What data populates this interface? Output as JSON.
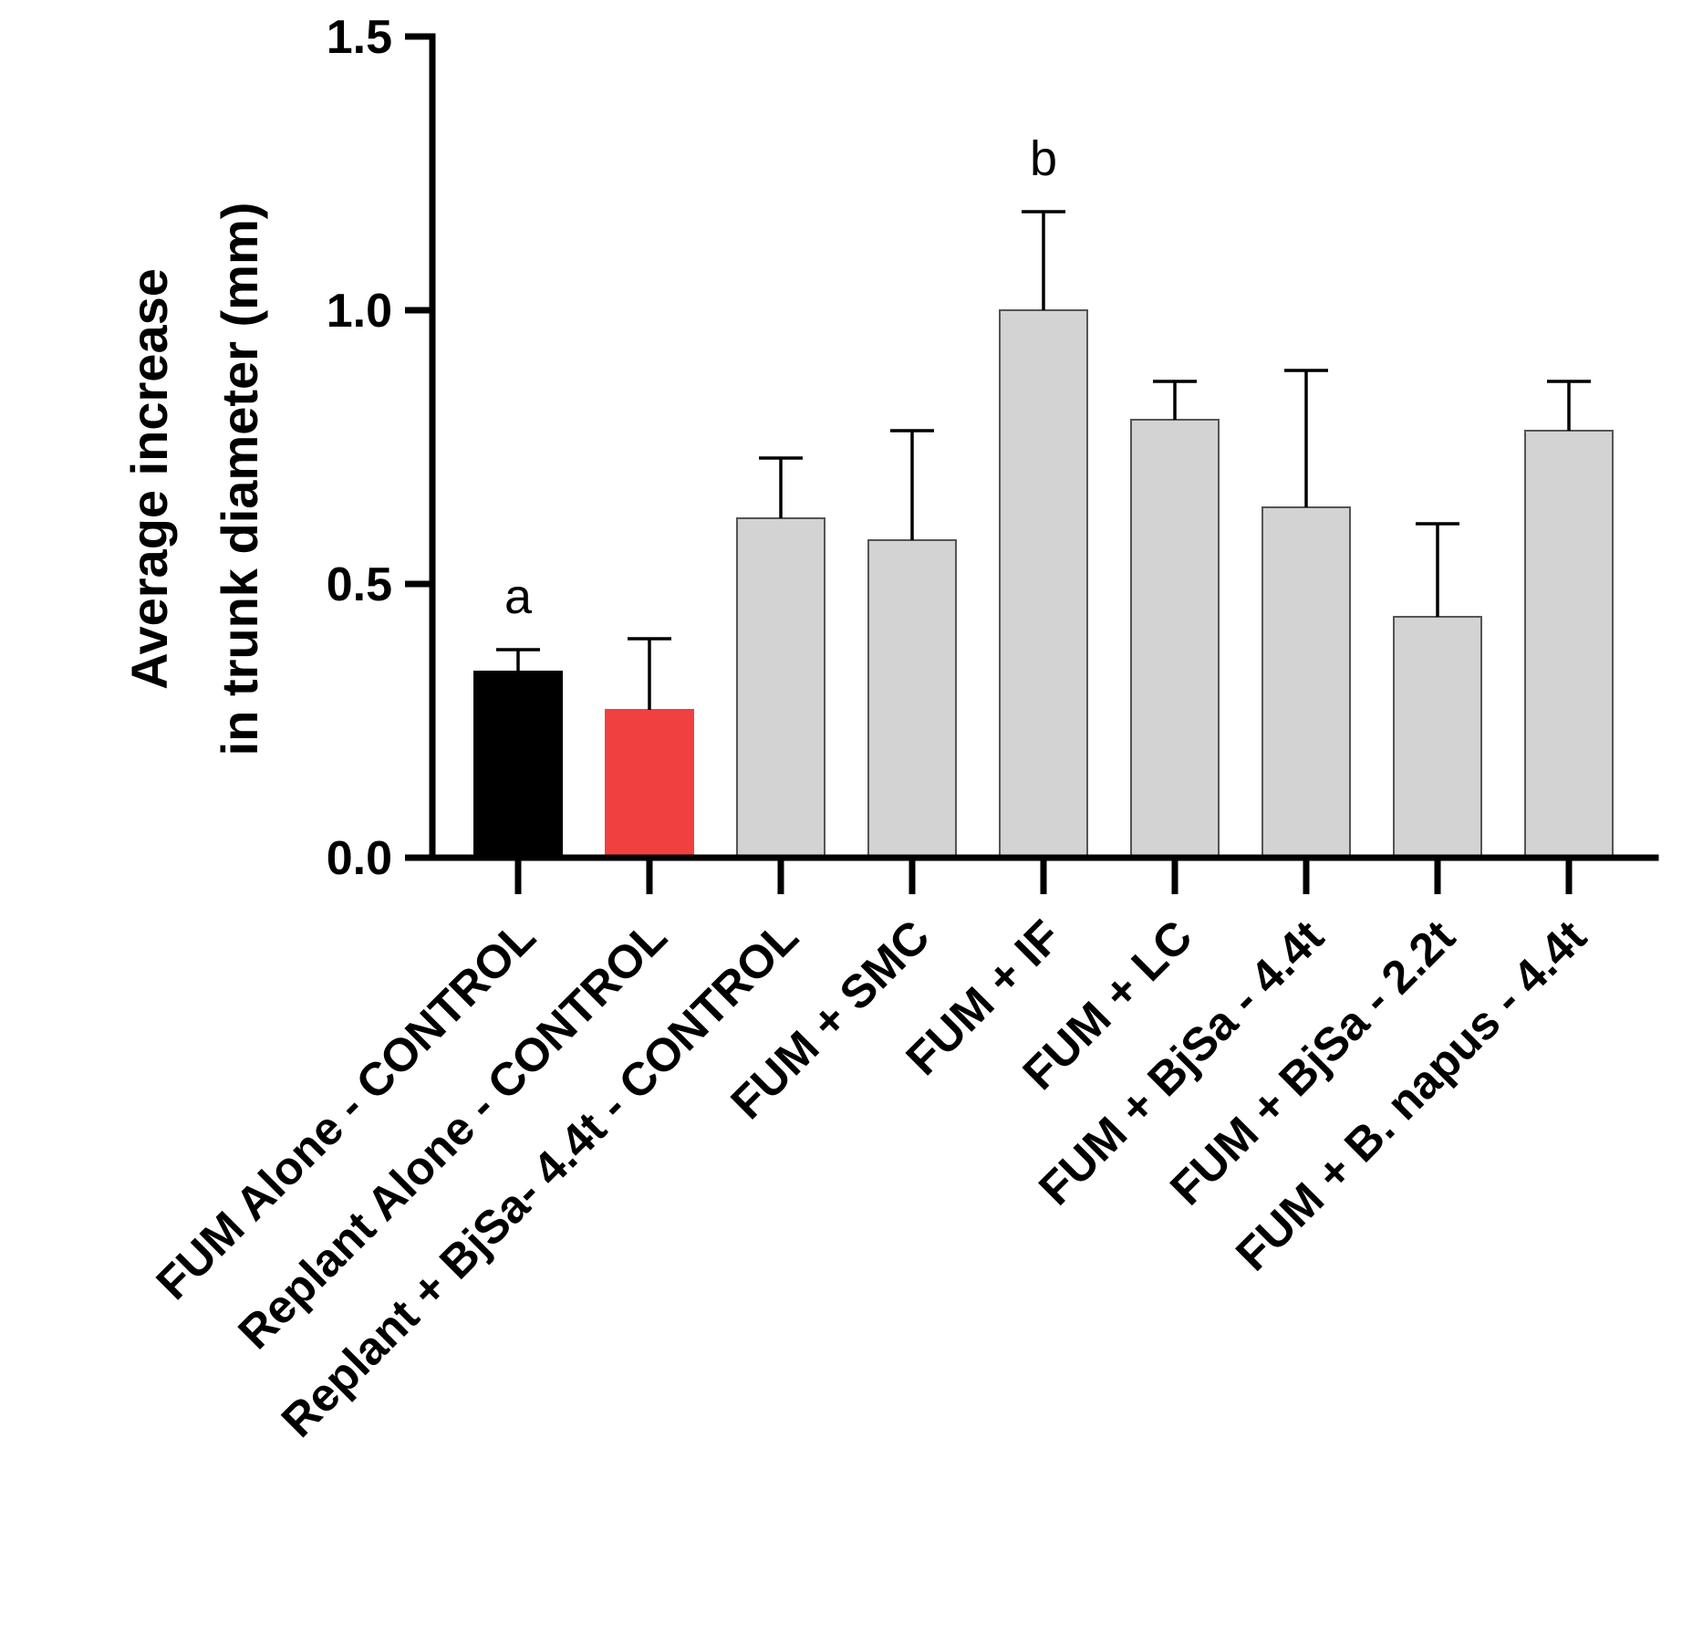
{
  "chart_data": {
    "type": "bar",
    "title": "",
    "xlabel": "",
    "ylabel_lines": [
      "Average increase",
      "in trunk diameter  (mm)"
    ],
    "ylim": [
      0,
      1.5
    ],
    "yticks": [
      0.0,
      0.5,
      1.0,
      1.5
    ],
    "ytick_labels": [
      "0.0",
      "0.5",
      "1.0",
      "1.5"
    ],
    "grid": false,
    "legend": "none",
    "categories": [
      "FUM Alone - CONTROL",
      "Replant Alone - CONTROL",
      "Replant + BjSa- 4.4t - CONTROL",
      "FUM + SMC",
      "FUM + IF",
      "FUM + LC",
      "FUM + BjSa - 4.4t",
      "FUM + BjSa - 2.2t",
      "FUM + B. napus - 4.4t"
    ],
    "values": [
      0.34,
      0.27,
      0.62,
      0.58,
      1.0,
      0.8,
      0.64,
      0.44,
      0.78
    ],
    "error_upper": [
      0.38,
      0.4,
      0.73,
      0.78,
      1.18,
      0.87,
      0.89,
      0.61,
      0.87
    ],
    "bar_colors": [
      "#000000",
      "#f04040",
      "#d3d3d3",
      "#d3d3d3",
      "#d3d3d3",
      "#d3d3d3",
      "#d3d3d3",
      "#d3d3d3",
      "#d3d3d3"
    ],
    "annotations": [
      {
        "category_index": 0,
        "text": "a"
      },
      {
        "category_index": 4,
        "text": "b"
      }
    ]
  }
}
